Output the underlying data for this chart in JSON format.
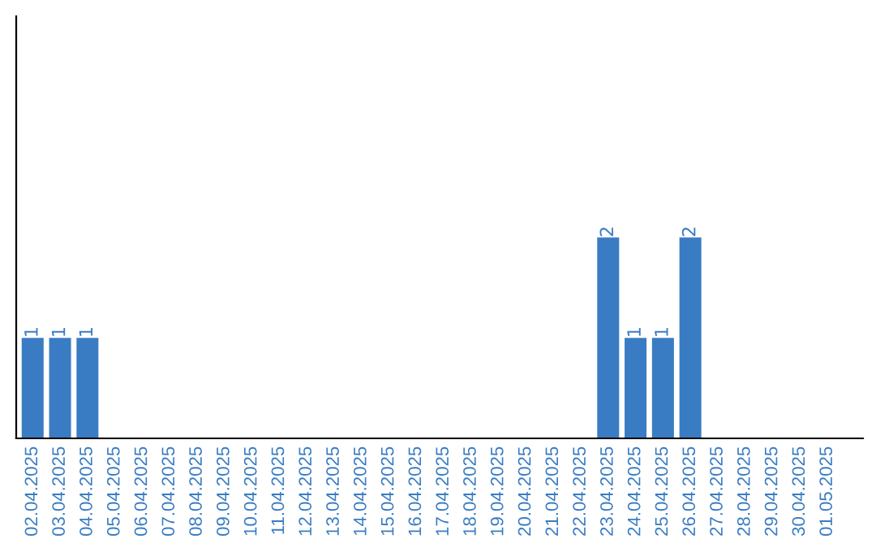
{
  "chart_data": {
    "type": "bar",
    "categories": [
      "02.04.2025",
      "03.04.2025",
      "04.04.2025",
      "05.04.2025",
      "06.04.2025",
      "07.04.2025",
      "08.04.2025",
      "09.04.2025",
      "10.04.2025",
      "11.04.2025",
      "12.04.2025",
      "13.04.2025",
      "14.04.2025",
      "15.04.2025",
      "16.04.2025",
      "17.04.2025",
      "18.04.2025",
      "19.04.2025",
      "20.04.2025",
      "21.04.2025",
      "22.04.2025",
      "23.04.2025",
      "24.04.2025",
      "25.04.2025",
      "26.04.2025",
      "27.04.2025",
      "28.04.2025",
      "29.04.2025",
      "30.04.2025",
      "01.05.2025"
    ],
    "values": [
      1,
      1,
      1,
      0,
      0,
      0,
      0,
      0,
      0,
      0,
      0,
      0,
      0,
      0,
      0,
      0,
      0,
      0,
      0,
      0,
      0,
      2,
      1,
      1,
      2,
      0,
      0,
      0,
      0,
      0
    ],
    "value_labels": [
      "1",
      "1",
      "1",
      null,
      null,
      null,
      null,
      null,
      null,
      null,
      null,
      null,
      null,
      null,
      null,
      null,
      null,
      null,
      null,
      null,
      null,
      "2",
      "1",
      "1",
      "2",
      null,
      null,
      null,
      null,
      null
    ],
    "color": "#3a7cc3",
    "ylim": [
      0,
      4.2
    ],
    "tick_labels": "x",
    "grid": false,
    "legend": false
  }
}
